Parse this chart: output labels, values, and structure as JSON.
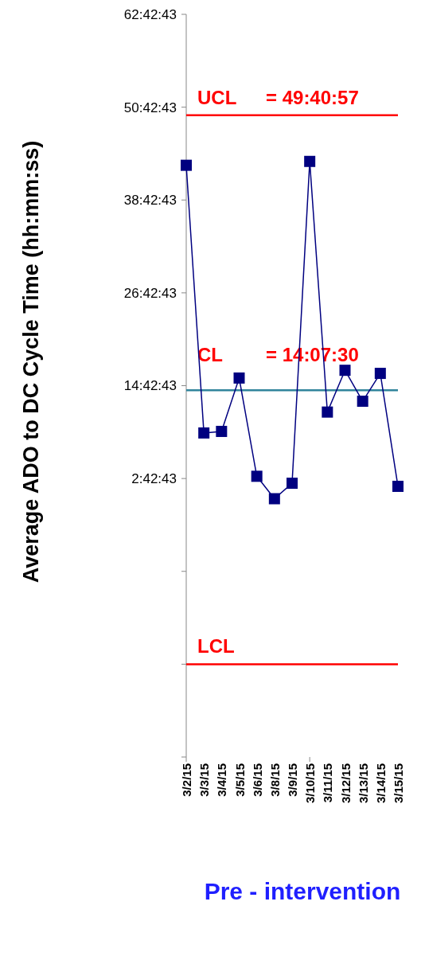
{
  "chart_data": {
    "type": "line",
    "xlabel": "Pre - intervention",
    "ylabel": "Average ADO to DC Cycle Time (hh:mm:ss)",
    "categories": [
      "3/2/15",
      "3/3/15",
      "3/4/15",
      "3/5/15",
      "3/6/15",
      "3/8/15",
      "3/9/15",
      "3/10/15",
      "3/11/15",
      "3/12/15",
      "3/13/15",
      "3/14/15",
      "3/15/15"
    ],
    "series": [
      {
        "color": "#000080",
        "values": [
          43.2,
          8.6,
          8.8,
          15.7,
          3.0,
          0.1,
          2.1,
          43.7,
          11.3,
          16.7,
          12.7,
          16.3,
          1.7
        ]
      }
    ],
    "ylim": [
      -33.288,
      62.712
    ],
    "yticks": [
      {
        "value": 62.712,
        "label": "62:42:43"
      },
      {
        "value": 50.712,
        "label": "50:42:43"
      },
      {
        "value": 38.712,
        "label": "38:42:43"
      },
      {
        "value": 26.712,
        "label": "26:42:43"
      },
      {
        "value": 14.712,
        "label": "14:42:43"
      },
      {
        "value": 2.712,
        "label": "2:42:43"
      },
      {
        "value": -9.288,
        "label": null
      },
      {
        "value": -21.288,
        "label": null
      },
      {
        "value": -33.288,
        "label": null
      }
    ],
    "annotations": [
      "= 49:40:57",
      "= 14:07:30"
    ],
    "ref_lines": [
      {
        "axis": "y",
        "value": 49.6825,
        "label": "UCL",
        "color": "#ff0000"
      },
      {
        "axis": "y",
        "value": 14.125,
        "label": "CL",
        "color": "#31849b"
      },
      {
        "axis": "y",
        "value": -21.3,
        "label": "LCL",
        "color": "#ff0000"
      }
    ],
    "marker": "square",
    "line_style": "solid",
    "grid": false
  }
}
